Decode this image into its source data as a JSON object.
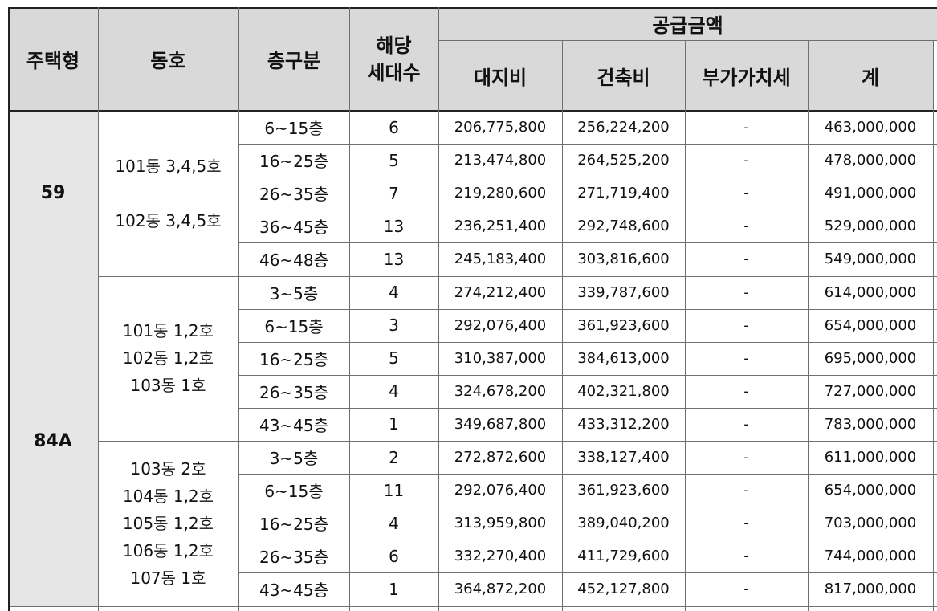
{
  "header": {
    "type": "주택형",
    "dong": "동호",
    "floor": "층구분",
    "units": [
      "해당",
      "세대수"
    ],
    "supply": "공급금액",
    "land": "대지비",
    "build": "건축비",
    "vat": "부가가치세",
    "total": "계"
  },
  "groups": [
    {
      "type": "59",
      "blocks": [
        {
          "dong": [
            "101동 3,4,5호",
            "",
            "102동 3,4,5호"
          ],
          "rows": [
            {
              "floor": "6~15층",
              "units": "6",
              "land": "206,775,800",
              "build": "256,224,200",
              "vat": "-",
              "total": "463,000,000"
            },
            {
              "floor": "16~25층",
              "units": "5",
              "land": "213,474,800",
              "build": "264,525,200",
              "vat": "-",
              "total": "478,000,000"
            },
            {
              "floor": "26~35층",
              "units": "7",
              "land": "219,280,600",
              "build": "271,719,400",
              "vat": "-",
              "total": "491,000,000"
            },
            {
              "floor": "36~45층",
              "units": "13",
              "land": "236,251,400",
              "build": "292,748,600",
              "vat": "-",
              "total": "529,000,000"
            },
            {
              "floor": "46~48층",
              "units": "13",
              "land": "245,183,400",
              "build": "303,816,600",
              "vat": "-",
              "total": "549,000,000"
            }
          ]
        }
      ]
    },
    {
      "type": "84A",
      "blocks": [
        {
          "dong": [
            "101동 1,2호",
            "102동 1,2호",
            "103동 1호"
          ],
          "rows": [
            {
              "floor": "3~5층",
              "units": "4",
              "land": "274,212,400",
              "build": "339,787,600",
              "vat": "-",
              "total": "614,000,000"
            },
            {
              "floor": "6~15층",
              "units": "3",
              "land": "292,076,400",
              "build": "361,923,600",
              "vat": "-",
              "total": "654,000,000"
            },
            {
              "floor": "16~25층",
              "units": "5",
              "land": "310,387,000",
              "build": "384,613,000",
              "vat": "-",
              "total": "695,000,000"
            },
            {
              "floor": "26~35층",
              "units": "4",
              "land": "324,678,200",
              "build": "402,321,800",
              "vat": "-",
              "total": "727,000,000"
            },
            {
              "floor": "43~45층",
              "units": "1",
              "land": "349,687,800",
              "build": "433,312,200",
              "vat": "-",
              "total": "783,000,000"
            }
          ]
        },
        {
          "dong": [
            "103동 2호",
            "104동 1,2호",
            "105동 1,2호",
            "106동 1,2호",
            "107동 1호"
          ],
          "rows": [
            {
              "floor": "3~5층",
              "units": "2",
              "land": "272,872,600",
              "build": "338,127,400",
              "vat": "-",
              "total": "611,000,000"
            },
            {
              "floor": "6~15층",
              "units": "11",
              "land": "292,076,400",
              "build": "361,923,600",
              "vat": "-",
              "total": "654,000,000"
            },
            {
              "floor": "16~25층",
              "units": "4",
              "land": "313,959,800",
              "build": "389,040,200",
              "vat": "-",
              "total": "703,000,000"
            },
            {
              "floor": "26~35층",
              "units": "6",
              "land": "332,270,400",
              "build": "411,729,600",
              "vat": "-",
              "total": "744,000,000"
            },
            {
              "floor": "43~45층",
              "units": "1",
              "land": "364,872,200",
              "build": "452,127,800",
              "vat": "-",
              "total": "817,000,000"
            }
          ]
        }
      ]
    }
  ]
}
